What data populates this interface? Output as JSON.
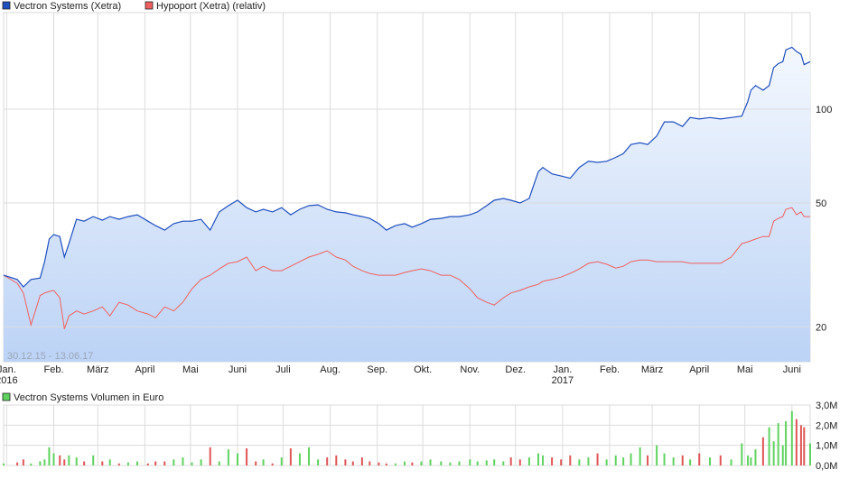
{
  "chart_data": [
    {
      "type": "line",
      "legend": [
        {
          "label": "Vectron Systems (Xetra)",
          "color": "#1f4fbf"
        },
        {
          "label": "Hypoport (Xetra) (relativ)",
          "color": "#f06060"
        }
      ],
      "legend_placement": "top-left",
      "date_range_label": "30.12.15 - 13.06.17",
      "y_scale": "log",
      "ylim": [
        15.5,
        204
      ],
      "y_ticks": [
        {
          "value": 100,
          "label": "100"
        },
        {
          "value": 50,
          "label": "50"
        },
        {
          "value": 20,
          "label": "20"
        }
      ],
      "x_ticks": [
        {
          "date": "2016-01-01",
          "label": "Jan.",
          "year": "2016"
        },
        {
          "date": "2016-02-01",
          "label": "Feb."
        },
        {
          "date": "2016-03-01",
          "label": "März"
        },
        {
          "date": "2016-04-01",
          "label": "April"
        },
        {
          "date": "2016-05-01",
          "label": "Mai"
        },
        {
          "date": "2016-06-01",
          "label": "Juni"
        },
        {
          "date": "2016-07-01",
          "label": "Juli"
        },
        {
          "date": "2016-08-01",
          "label": "Aug."
        },
        {
          "date": "2016-09-01",
          "label": "Sep."
        },
        {
          "date": "2016-10-01",
          "label": "Okt."
        },
        {
          "date": "2016-11-01",
          "label": "Nov."
        },
        {
          "date": "2016-12-01",
          "label": "Dez."
        },
        {
          "date": "2017-01-01",
          "label": "Jan.",
          "year": "2017"
        },
        {
          "date": "2017-02-01",
          "label": "Feb."
        },
        {
          "date": "2017-03-01",
          "label": "März"
        },
        {
          "date": "2017-04-01",
          "label": "April"
        },
        {
          "date": "2017-05-01",
          "label": "Mai"
        },
        {
          "date": "2017-06-01",
          "label": "Juni"
        }
      ],
      "grid": true,
      "x": [
        "2015-12-30",
        "2016-01-08",
        "2016-01-12",
        "2016-01-17",
        "2016-01-23",
        "2016-01-26",
        "2016-01-29",
        "2016-02-01",
        "2016-02-05",
        "2016-02-08",
        "2016-02-11",
        "2016-02-16",
        "2016-02-21",
        "2016-02-27",
        "2016-03-04",
        "2016-03-09",
        "2016-03-15",
        "2016-03-21",
        "2016-03-27",
        "2016-04-03",
        "2016-04-08",
        "2016-04-14",
        "2016-04-20",
        "2016-04-26",
        "2016-05-02",
        "2016-05-08",
        "2016-05-14",
        "2016-05-20",
        "2016-05-26",
        "2016-06-01",
        "2016-06-07",
        "2016-06-13",
        "2016-06-18",
        "2016-06-24",
        "2016-06-30",
        "2016-07-06",
        "2016-07-12",
        "2016-07-18",
        "2016-07-24",
        "2016-07-30",
        "2016-08-05",
        "2016-08-11",
        "2016-08-16",
        "2016-08-22",
        "2016-08-27",
        "2016-09-02",
        "2016-09-07",
        "2016-09-13",
        "2016-09-19",
        "2016-09-24",
        "2016-09-30",
        "2016-10-06",
        "2016-10-13",
        "2016-10-19",
        "2016-10-25",
        "2016-11-01",
        "2016-11-06",
        "2016-11-12",
        "2016-11-17",
        "2016-11-23",
        "2016-11-28",
        "2016-12-04",
        "2016-12-10",
        "2016-12-16",
        "2016-12-19",
        "2016-12-25",
        "2016-12-31",
        "2017-01-06",
        "2017-01-12",
        "2017-01-18",
        "2017-01-24",
        "2017-01-30",
        "2017-02-05",
        "2017-02-10",
        "2017-02-15",
        "2017-02-21",
        "2017-02-26",
        "2017-03-04",
        "2017-03-09",
        "2017-03-15",
        "2017-03-21",
        "2017-03-26",
        "2017-04-01",
        "2017-04-08",
        "2017-04-15",
        "2017-04-22",
        "2017-04-29",
        "2017-05-03",
        "2017-05-05",
        "2017-05-08",
        "2017-05-13",
        "2017-05-17",
        "2017-05-20",
        "2017-05-23",
        "2017-05-26",
        "2017-05-28",
        "2017-06-01",
        "2017-06-04",
        "2017-06-07",
        "2017-06-09",
        "2017-06-13"
      ],
      "series": [
        {
          "name": "Vectron Systems (Xetra)",
          "color": "#1f4fbf",
          "values": [
            29.3,
            28.4,
            26.9,
            28.4,
            28.7,
            32.4,
            38.3,
            39.6,
            39,
            33.5,
            37,
            44.3,
            43.7,
            45.2,
            44,
            45.2,
            44.3,
            45.2,
            45.8,
            43.7,
            42.3,
            40.9,
            42.9,
            43.7,
            43.7,
            44.3,
            40.9,
            46.8,
            49,
            51,
            48.3,
            46.8,
            47.7,
            46.8,
            48.3,
            45.8,
            47.7,
            49,
            49.3,
            47.7,
            46.8,
            46.5,
            45.8,
            45.2,
            44.6,
            42.9,
            40.9,
            42.3,
            42.9,
            41.8,
            42.9,
            44.3,
            44.6,
            45.2,
            45.2,
            45.8,
            46.8,
            49,
            51,
            51.7,
            51,
            50,
            51.7,
            63,
            65,
            62,
            61,
            60,
            65,
            68,
            67.5,
            68,
            70,
            72,
            77,
            78,
            77,
            82,
            91,
            91,
            88,
            94,
            93,
            94,
            93,
            94,
            95,
            106,
            115,
            119,
            115,
            119,
            136,
            140,
            142,
            155,
            158,
            153,
            150,
            139,
            142
          ]
        },
        {
          "name": "Hypoport (Xetra) (relativ)",
          "color": "#f06060",
          "values": [
            29.3,
            27.6,
            25.7,
            20.3,
            25.2,
            25.7,
            26,
            26.2,
            24.8,
            19.7,
            21.7,
            22.5,
            22,
            22.5,
            23.2,
            21.7,
            24,
            23.5,
            22.5,
            22,
            21.4,
            23.2,
            22.5,
            24,
            26.5,
            28.4,
            29.3,
            30.7,
            32,
            32.4,
            33.5,
            30.3,
            31.3,
            30.3,
            30.3,
            31.3,
            32.4,
            33.5,
            34.2,
            35.1,
            33.5,
            32.8,
            31.3,
            30.3,
            29.7,
            29.3,
            29.3,
            29.3,
            29.9,
            30.3,
            30.7,
            30.3,
            29.3,
            29.3,
            28.4,
            26.5,
            24.8,
            24,
            23.5,
            24.8,
            25.7,
            26.2,
            26.9,
            27.4,
            28,
            28.4,
            28.9,
            29.7,
            30.7,
            32,
            32.4,
            31.8,
            30.9,
            31.3,
            32.4,
            32.8,
            32.8,
            32.4,
            32.4,
            32.4,
            32.4,
            32,
            32,
            32,
            32,
            33.5,
            37,
            37.5,
            37.8,
            38.3,
            39,
            39,
            43.7,
            44.6,
            45.2,
            47.7,
            48.3,
            45.8,
            46.8,
            45.2,
            45.2
          ]
        }
      ]
    },
    {
      "type": "bar",
      "legend": [
        {
          "label": "Vectron Systems Volumen in Euro",
          "color": "#5fd35f"
        }
      ],
      "up_color": "#5fd35f",
      "down_color": "#e05555",
      "ylim": [
        0,
        3.0
      ],
      "y_unit": "M",
      "y_ticks": [
        {
          "value": 3,
          "label": "3,0M"
        },
        {
          "value": 2,
          "label": "2,0M"
        },
        {
          "value": 1,
          "label": "1,0M"
        },
        {
          "value": 0,
          "label": "0,0M"
        }
      ],
      "values": [
        0.1,
        0.15,
        0.3,
        0.1,
        0.2,
        0.3,
        0.9,
        0.6,
        0.5,
        0.3,
        0.5,
        0.4,
        0.2,
        0.5,
        0.2,
        0.3,
        0.1,
        0.15,
        0.2,
        0.1,
        0.2,
        0.2,
        0.3,
        0.4,
        0.15,
        0.3,
        0.9,
        0.2,
        0.8,
        0.6,
        0.85,
        0.2,
        0.3,
        0.1,
        0.4,
        0.85,
        0.6,
        0.9,
        0.3,
        0.4,
        0.5,
        0.3,
        0.2,
        0.4,
        0.2,
        0.15,
        0.1,
        0.1,
        0.2,
        0.15,
        0.2,
        0.3,
        0.2,
        0.15,
        0.2,
        0.3,
        0.2,
        0.25,
        0.3,
        0.2,
        0.4,
        0.3,
        0.4,
        0.6,
        0.5,
        0.4,
        0.3,
        0.5,
        0.3,
        0.4,
        0.6,
        0.3,
        0.5,
        0.4,
        0.6,
        0.9,
        0.5,
        1.0,
        0.6,
        0.4,
        0.5,
        0.3,
        0.6,
        0.4,
        0.5,
        0.3,
        1.1,
        0.5,
        0.4,
        0.8,
        1.4,
        1.9,
        1.2,
        2.1,
        1.0,
        2.2,
        2.7,
        2.3,
        2.0,
        1.9,
        1.1
      ]
    }
  ]
}
